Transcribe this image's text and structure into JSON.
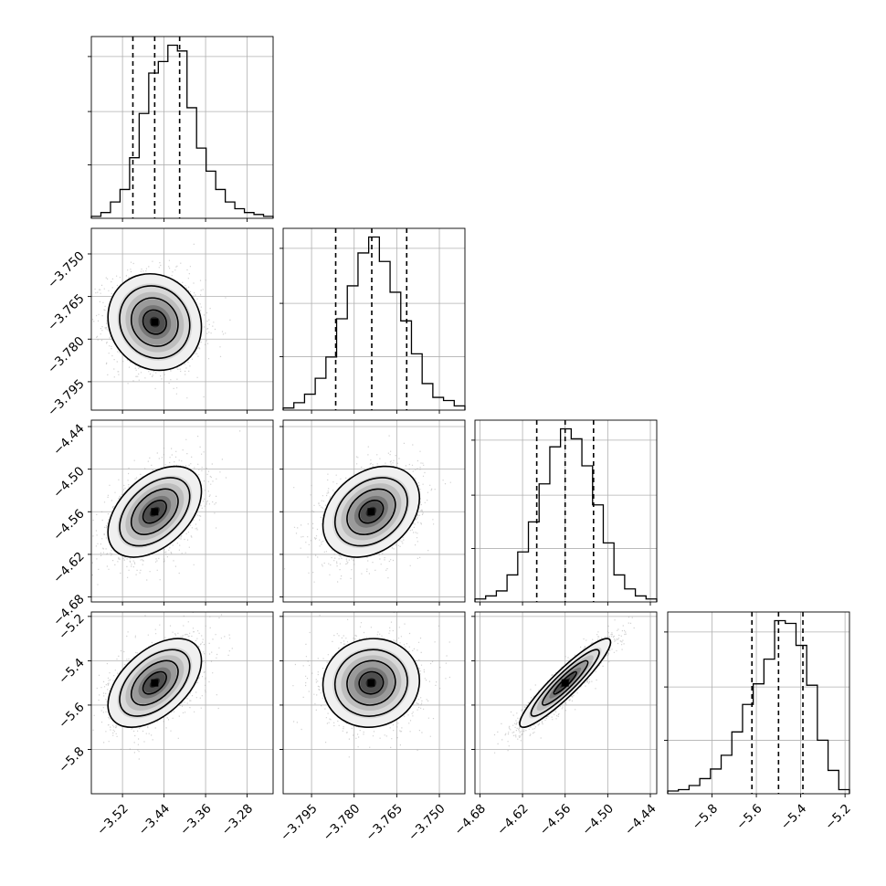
{
  "chart_data": {
    "type": "corner",
    "title": "",
    "n_params": 4,
    "params": [
      {
        "name": "",
        "range": [
          -3.58,
          -3.23
        ],
        "ticks": [
          -3.52,
          -3.44,
          -3.36,
          -3.28
        ],
        "tick_labels": [
          "−3.52",
          "−3.44",
          "−3.36",
          "−3.28"
        ],
        "quantiles": [
          -3.5,
          -3.458,
          -3.41
        ]
      },
      {
        "name": "",
        "range": [
          -3.805,
          -3.741
        ],
        "ticks": [
          -3.795,
          -3.78,
          -3.765,
          -3.75
        ],
        "tick_labels": [
          "−3.795",
          "−3.780",
          "−3.765",
          "−3.750"
        ],
        "quantiles": [
          -3.7865,
          -3.7738,
          -3.7615
        ]
      },
      {
        "name": "",
        "range": [
          -4.687,
          -4.431
        ],
        "ticks": [
          -4.68,
          -4.62,
          -4.56,
          -4.5,
          -4.44
        ],
        "tick_labels": [
          "−4.68",
          "−4.62",
          "−4.56",
          "−4.50",
          "−4.44"
        ],
        "quantiles": [
          -4.6,
          -4.56,
          -4.52
        ]
      },
      {
        "name": "",
        "range": [
          -6.0,
          -5.18
        ],
        "ticks": [
          -5.8,
          -5.6,
          -5.4,
          -5.2
        ],
        "tick_labels": [
          "−5.8",
          "−5.6",
          "−5.4",
          "−5.2"
        ],
        "quantiles": [
          -5.62,
          -5.5,
          -5.39
        ]
      }
    ],
    "histograms": [
      [
        2,
        6,
        17,
        30,
        63,
        109,
        151,
        163,
        180,
        174,
        115,
        73,
        49,
        30,
        17,
        10,
        6,
        4,
        2
      ],
      [
        2,
        7,
        15,
        30,
        50,
        86,
        117,
        148,
        163,
        140,
        111,
        84,
        53,
        25,
        12,
        9,
        4
      ],
      [
        3,
        6,
        11,
        27,
        50,
        80,
        118,
        155,
        173,
        163,
        136,
        97,
        59,
        27,
        13,
        6,
        3
      ],
      [
        2,
        3,
        6,
        11,
        18,
        28,
        45,
        65,
        80,
        98,
        126,
        124,
        108,
        79,
        39,
        17,
        3
      ]
    ],
    "pairs": [
      {
        "x": 0,
        "y": 1,
        "mean": [
          -3.458,
          -3.774
        ],
        "sigma": [
          0.045,
          0.0085
        ],
        "rho": -0.1
      },
      {
        "x": 0,
        "y": 2,
        "mean": [
          -3.458,
          -4.56
        ],
        "sigma": [
          0.045,
          0.032
        ],
        "rho": 0.45
      },
      {
        "x": 1,
        "y": 2,
        "mean": [
          -3.774,
          -4.56
        ],
        "sigma": [
          0.0085,
          0.032
        ],
        "rho": 0.3
      },
      {
        "x": 0,
        "y": 3,
        "mean": [
          -3.458,
          -5.5
        ],
        "sigma": [
          0.045,
          0.1
        ],
        "rho": 0.5
      },
      {
        "x": 1,
        "y": 3,
        "mean": [
          -3.774,
          -5.5
        ],
        "sigma": [
          0.0085,
          0.1
        ],
        "rho": 0.05
      },
      {
        "x": 2,
        "y": 3,
        "mean": [
          -4.56,
          -5.5
        ],
        "sigma": [
          0.032,
          0.1
        ],
        "rho": 0.92
      }
    ],
    "grid": true,
    "colors": {
      "ink": "#000000",
      "grid": "#b0b0b0",
      "points": "#9a9a9a"
    }
  }
}
